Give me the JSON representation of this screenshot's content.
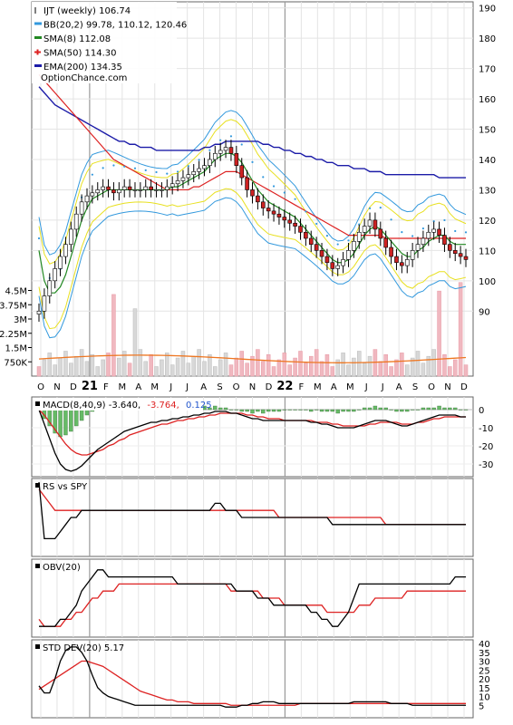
{
  "legend": [
    {
      "label": "IJT (weekly) 106.74",
      "color": "#000000",
      "marker": "tick"
    },
    {
      "label": "BB(20,2) 99.78, 110.12, 120.46",
      "color": "#3399dd",
      "marker": "dash"
    },
    {
      "label": "SMA(8) 112.08",
      "color": "#228822",
      "marker": "dash"
    },
    {
      "label": "SMA(50) 114.30",
      "color": "#dd2222",
      "marker": "plus"
    },
    {
      "label": "EMA(200) 134.35",
      "color": "#1c1ca8",
      "marker": "dash"
    }
  ],
  "watermark": "OptionChance.com",
  "main": {
    "y_ticks": [
      "190",
      "180",
      "170",
      "160",
      "150",
      "140",
      "130",
      "120",
      "110",
      "100",
      "90"
    ],
    "vol_ticks": [
      "4.5M",
      "3.75M",
      "3M",
      "2.25M",
      "1.5M",
      "750K"
    ]
  },
  "x_axis": {
    "labels": [
      "O",
      "N",
      "D",
      "21",
      "F",
      "M",
      "A",
      "M",
      "J",
      "J",
      "A",
      "S",
      "O",
      "N",
      "D",
      "22",
      "F",
      "M",
      "A",
      "M",
      "J",
      "J",
      "A",
      "S",
      "O",
      "N",
      "D"
    ],
    "bold_labels": [
      "21",
      "22"
    ]
  },
  "macd": {
    "label_prefix": "MACD(8,40,9) -3.640,",
    "signal_value": "-3.764,",
    "hist_value": "0.125",
    "signal_color": "#dd2222",
    "hist_color": "#2255cc",
    "y_ticks": [
      "0",
      "-10",
      "-20",
      "-30"
    ]
  },
  "rs": {
    "label": "RS vs SPY"
  },
  "obv": {
    "label": "OBV(20)"
  },
  "std": {
    "label": "STD DEV(20) 5.17",
    "y_ticks": [
      "40",
      "35",
      "30",
      "25",
      "20",
      "15",
      "10",
      "5"
    ]
  },
  "colors": {
    "price_up": "#ffffff",
    "price_down": "#cc2222",
    "ema200": "#1c1ca8",
    "sma50": "#dd2222",
    "sma8": "#228822",
    "bb": "#3399dd",
    "bb_mid": "#e8e020",
    "psar": "#3399dd",
    "vol_bar": "#f0b8c0",
    "vol_bar_alt": "#d8d8d8",
    "vol_avg": "#ee7722",
    "macd_line": "#000000",
    "macd_signal": "#dd2222",
    "macd_hist": "#66bb66"
  },
  "chart_data": {
    "type": "line",
    "title": "IJT (weekly) 106.74",
    "x_type": "weekly dates Oct 2020 - Dec 2022",
    "price_range": [
      85,
      192
    ],
    "series": [
      {
        "name": "IJT (weekly) 106.74",
        "values": [
          90,
          95,
          100,
          104,
          108,
          112,
          117,
          122,
          126,
          128,
          129,
          130,
          131,
          130,
          129,
          130,
          131,
          130,
          130,
          130,
          131,
          130,
          130,
          130,
          131,
          132,
          133,
          134,
          135,
          136,
          137,
          138,
          140,
          142,
          143,
          144,
          142,
          138,
          134,
          130,
          128,
          126,
          124,
          123,
          122,
          121,
          120,
          119,
          118,
          116,
          114,
          112,
          110,
          108,
          106,
          104,
          105,
          107,
          110,
          113,
          116,
          118,
          120,
          117,
          114,
          111,
          108,
          106,
          105,
          107,
          110,
          112,
          114,
          116,
          117,
          115,
          112,
          110,
          109,
          108,
          107
        ]
      },
      {
        "name": "EMA(200) 134.35",
        "values": [
          164,
          162,
          160,
          158,
          157,
          156,
          155,
          154,
          153,
          152,
          151,
          150,
          149,
          148,
          147,
          146,
          146,
          145,
          145,
          144,
          144,
          144,
          143,
          143,
          143,
          143,
          143,
          143,
          143,
          143,
          143,
          144,
          144,
          145,
          145,
          146,
          146,
          146,
          146,
          146,
          146,
          146,
          145,
          145,
          144,
          144,
          143,
          143,
          142,
          142,
          141,
          141,
          140,
          140,
          139,
          139,
          138,
          138,
          138,
          137,
          137,
          137,
          136,
          136,
          136,
          135,
          135,
          135,
          135,
          135,
          135,
          135,
          135,
          135,
          135,
          134,
          134,
          134,
          134,
          134,
          134
        ]
      },
      {
        "name": "SMA(50) 114.30",
        "values": [
          168,
          166,
          164,
          162,
          160,
          158,
          156,
          154,
          152,
          150,
          148,
          146,
          144,
          142,
          140,
          139,
          138,
          137,
          136,
          135,
          134,
          133,
          132,
          131,
          130,
          130,
          130,
          130,
          130,
          131,
          131,
          132,
          133,
          134,
          135,
          136,
          136,
          136,
          135,
          134,
          133,
          132,
          131,
          130,
          129,
          128,
          127,
          126,
          125,
          124,
          123,
          122,
          121,
          120,
          119,
          118,
          117,
          116,
          115,
          115,
          115,
          115,
          115,
          115,
          115,
          114,
          114,
          114,
          114,
          114,
          114,
          114,
          114,
          114,
          114,
          114,
          114,
          114,
          114,
          114,
          114
        ]
      },
      {
        "name": "SMA(8) 112.08",
        "values": [
          110,
          100,
          96,
          96,
          98,
          102,
          108,
          114,
          120,
          124,
          127,
          128,
          129,
          130,
          130,
          130,
          130,
          130,
          130,
          130,
          130,
          130,
          130,
          130,
          130,
          131,
          131,
          132,
          133,
          134,
          135,
          136,
          138,
          140,
          141,
          142,
          142,
          141,
          139,
          136,
          133,
          130,
          128,
          126,
          125,
          124,
          123,
          122,
          121,
          119,
          117,
          115,
          113,
          111,
          109,
          107,
          106,
          106,
          107,
          109,
          112,
          115,
          117,
          118,
          117,
          115,
          113,
          111,
          109,
          108,
          108,
          110,
          111,
          113,
          114,
          115,
          115,
          113,
          112,
          112,
          112
        ]
      }
    ],
    "bollinger": {
      "name": "BB(20,2) 99.78, 110.12, 120.46"
    },
    "volume_range": [
      0,
      5000000
    ],
    "macd": {
      "name": "MACD(8,40,9)",
      "range": [
        -35,
        5
      ],
      "macd": [
        0,
        -8,
        -16,
        -24,
        -30,
        -33,
        -34,
        -33,
        -31,
        -28,
        -25,
        -22,
        -20,
        -18,
        -16,
        -14,
        -12,
        -11,
        -10,
        -9,
        -8,
        -7,
        -7,
        -6,
        -6,
        -5,
        -5,
        -4,
        -4,
        -3,
        -3,
        -2,
        -2,
        -1,
        -1,
        -1,
        -2,
        -2,
        -3,
        -4,
        -5,
        -5,
        -6,
        -6,
        -6,
        -6,
        -6,
        -6,
        -6,
        -6,
        -6,
        -7,
        -7,
        -8,
        -8,
        -9,
        -10,
        -10,
        -10,
        -10,
        -9,
        -8,
        -7,
        -6,
        -6,
        -6,
        -7,
        -8,
        -9,
        -9,
        -8,
        -7,
        -6,
        -5,
        -4,
        -3,
        -3,
        -3,
        -3,
        -4,
        -4
      ],
      "signal": [
        0,
        -3,
        -7,
        -11,
        -15,
        -19,
        -22,
        -24,
        -25,
        -25,
        -24,
        -23,
        -22,
        -20,
        -19,
        -17,
        -16,
        -14,
        -13,
        -12,
        -11,
        -10,
        -9,
        -8,
        -8,
        -7,
        -6,
        -6,
        -5,
        -5,
        -4,
        -4,
        -3,
        -3,
        -2,
        -2,
        -2,
        -2,
        -2,
        -3,
        -3,
        -4,
        -4,
        -5,
        -5,
        -5,
        -6,
        -6,
        -6,
        -6,
        -6,
        -6,
        -7,
        -7,
        -7,
        -8,
        -8,
        -9,
        -9,
        -9,
        -9,
        -9,
        -8,
        -8,
        -7,
        -7,
        -7,
        -7,
        -8,
        -8,
        -8,
        -7,
        -7,
        -6,
        -5,
        -5,
        -4,
        -4,
        -4,
        -4,
        -4
      ]
    },
    "rs": {
      "name": "RS vs SPY",
      "range": [
        0,
        10
      ],
      "line": [
        10,
        2,
        2,
        2,
        3,
        4,
        5,
        5,
        6,
        6,
        6,
        6,
        6,
        6,
        6,
        6,
        6,
        6,
        6,
        6,
        6,
        6,
        6,
        6,
        6,
        6,
        6,
        6,
        6,
        6,
        6,
        6,
        6,
        7,
        7,
        6,
        6,
        6,
        5,
        5,
        5,
        5,
        5,
        5,
        5,
        5,
        5,
        5,
        5,
        5,
        5,
        5,
        5,
        5,
        5,
        4,
        4,
        4,
        4,
        4,
        4,
        4,
        4,
        4,
        4,
        4,
        4,
        4,
        4,
        4,
        4,
        4,
        4,
        4,
        4,
        4,
        4,
        4,
        4,
        4,
        4
      ],
      "avg": [
        9,
        8,
        7,
        6,
        6,
        6,
        6,
        6,
        6,
        6,
        6,
        6,
        6,
        6,
        6,
        6,
        6,
        6,
        6,
        6,
        6,
        6,
        6,
        6,
        6,
        6,
        6,
        6,
        6,
        6,
        6,
        6,
        6,
        6,
        6,
        6,
        6,
        6,
        6,
        6,
        6,
        6,
        6,
        6,
        6,
        5,
        5,
        5,
        5,
        5,
        5,
        5,
        5,
        5,
        5,
        5,
        5,
        5,
        5,
        5,
        5,
        5,
        5,
        5,
        5,
        4,
        4,
        4,
        4,
        4,
        4,
        4,
        4,
        4,
        4,
        4,
        4,
        4,
        4,
        4,
        4
      ]
    },
    "obv": {
      "name": "OBV(20)",
      "range": [
        0,
        10
      ],
      "line": [
        1,
        1,
        1,
        1,
        2,
        2,
        3,
        4,
        6,
        7,
        8,
        9,
        9,
        8,
        8,
        8,
        8,
        8,
        8,
        8,
        8,
        8,
        8,
        8,
        8,
        8,
        7,
        7,
        7,
        7,
        7,
        7,
        7,
        7,
        7,
        7,
        7,
        6,
        6,
        6,
        6,
        5,
        5,
        5,
        4,
        4,
        4,
        4,
        4,
        4,
        4,
        3,
        3,
        2,
        2,
        1,
        1,
        2,
        3,
        5,
        7,
        7,
        7,
        7,
        7,
        7,
        7,
        7,
        7,
        7,
        7,
        7,
        7,
        7,
        7,
        7,
        7,
        7,
        8,
        8,
        8
      ],
      "avg": [
        2,
        1,
        1,
        1,
        1,
        2,
        2,
        3,
        3,
        4,
        5,
        5,
        6,
        6,
        6,
        7,
        7,
        7,
        7,
        7,
        7,
        7,
        7,
        7,
        7,
        7,
        7,
        7,
        7,
        7,
        7,
        7,
        7,
        7,
        7,
        7,
        6,
        6,
        6,
        6,
        6,
        6,
        5,
        5,
        5,
        5,
        4,
        4,
        4,
        4,
        4,
        4,
        4,
        4,
        3,
        3,
        3,
        3,
        3,
        3,
        4,
        4,
        4,
        5,
        5,
        5,
        5,
        5,
        5,
        6,
        6,
        6,
        6,
        6,
        6,
        6,
        6,
        6,
        6,
        6,
        6
      ]
    },
    "std": {
      "name": "STD DEV(20) 5.17",
      "range": [
        0,
        40
      ],
      "line": [
        16,
        12,
        12,
        20,
        30,
        36,
        38,
        38,
        35,
        30,
        22,
        15,
        12,
        10,
        9,
        8,
        7,
        6,
        5,
        5,
        5,
        5,
        5,
        5,
        5,
        5,
        5,
        5,
        5,
        5,
        5,
        5,
        5,
        5,
        5,
        4,
        4,
        4,
        5,
        5,
        6,
        6,
        7,
        7,
        7,
        6,
        6,
        6,
        6,
        6,
        6,
        6,
        6,
        6,
        6,
        6,
        6,
        6,
        6,
        7,
        7,
        7,
        7,
        7,
        7,
        7,
        6,
        6,
        6,
        6,
        5,
        5,
        5,
        5,
        5,
        5,
        5,
        5,
        5,
        5,
        5
      ],
      "avg": [
        14,
        16,
        18,
        20,
        22,
        24,
        26,
        28,
        30,
        30,
        29,
        28,
        27,
        25,
        23,
        21,
        19,
        17,
        15,
        13,
        12,
        11,
        10,
        9,
        8,
        8,
        7,
        7,
        7,
        6,
        6,
        6,
        6,
        6,
        6,
        6,
        5,
        5,
        5,
        5,
        5,
        5,
        5,
        5,
        5,
        5,
        5,
        5,
        5,
        6,
        6,
        6,
        6,
        6,
        6,
        6,
        6,
        6,
        6,
        6,
        6,
        6,
        6,
        6,
        6,
        6,
        6,
        6,
        6,
        6,
        6,
        6,
        6,
        6,
        6,
        6,
        6,
        6,
        6,
        6,
        6
      ]
    }
  }
}
